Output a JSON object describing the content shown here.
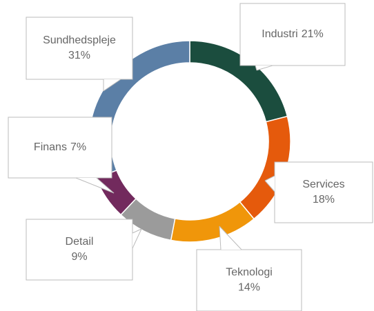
{
  "chart_data": {
    "type": "donut",
    "categories": [
      "Industri",
      "Services",
      "Teknologi",
      "Detail",
      "Finans",
      "Sundhedspleje"
    ],
    "values": [
      21,
      18,
      14,
      9,
      7,
      31
    ],
    "value_labels": [
      "21%",
      "18%",
      "14%",
      "9%",
      "7%",
      "31%"
    ],
    "colors": [
      "#1b4d3e",
      "#e55a0c",
      "#f0960a",
      "#9b9b9b",
      "#722a5d",
      "#5b7fa6"
    ]
  }
}
